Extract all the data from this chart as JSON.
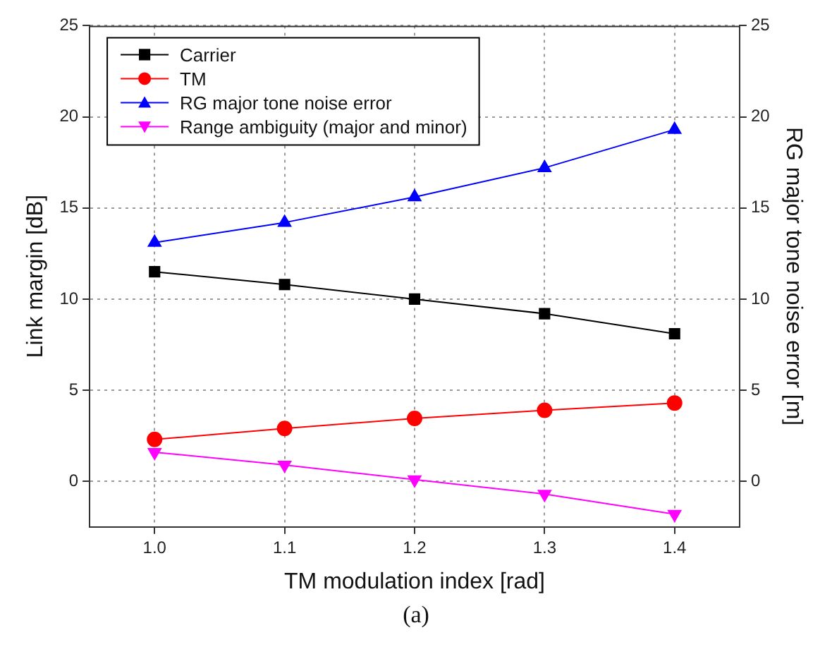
{
  "chart_data": {
    "type": "line",
    "xlabel": "TM modulation index [rad]",
    "ylabel": "Link margin [dB]",
    "y2label": "RG major tone noise error [m]",
    "x": [
      1.0,
      1.1,
      1.2,
      1.3,
      1.4
    ],
    "xlim": [
      0.95,
      1.45
    ],
    "xticks": [
      {
        "value": 1.0,
        "label": "1.0"
      },
      1.1,
      1.2,
      1.3,
      1.4
    ],
    "ylim": [
      -2.5,
      25
    ],
    "yticks": [
      0,
      5,
      10,
      15,
      20,
      25
    ],
    "y2lim": [
      -2.5,
      25
    ],
    "y2ticks": [
      0,
      5,
      10,
      15,
      20,
      25
    ],
    "series": [
      {
        "name": "Carrier",
        "color": "#000000",
        "marker": "square",
        "values": [
          11.5,
          10.8,
          10.0,
          9.2,
          8.1
        ]
      },
      {
        "name": "TM",
        "color": "#ff0000",
        "marker": "circle",
        "values": [
          2.3,
          2.9,
          3.45,
          3.9,
          4.3
        ]
      },
      {
        "name": "RG major tone noise error",
        "color": "#0000ff",
        "marker": "triangle",
        "axis": "y2",
        "values": [
          13.1,
          14.2,
          15.6,
          17.2,
          19.3
        ]
      },
      {
        "name": "Range ambiguity (major and minor)",
        "color": "#ff00ff",
        "marker": "triangle-down",
        "values": [
          1.6,
          0.9,
          0.1,
          -0.7,
          -1.8
        ]
      }
    ],
    "grid": true,
    "legend": "top left",
    "line_style": "solid",
    "annotations": [
      "(a)"
    ]
  }
}
